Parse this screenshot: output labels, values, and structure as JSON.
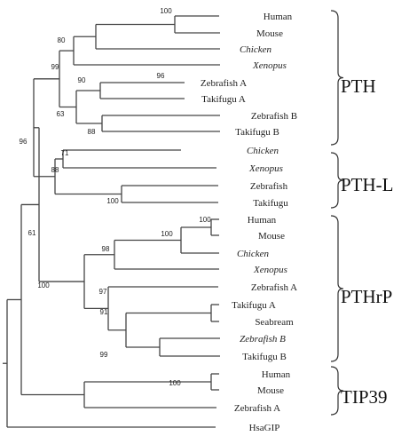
{
  "leaves": [
    {
      "label": "Human",
      "italic": false
    },
    {
      "label": "Mouse",
      "italic": false
    },
    {
      "label": "Chicken",
      "italic": true
    },
    {
      "label": "Xenopus",
      "italic": true
    },
    {
      "label": "Zebrafish A",
      "italic": false
    },
    {
      "label": "Takifugu A",
      "italic": false
    },
    {
      "label": "Zebrafish B",
      "italic": false
    },
    {
      "label": "Takifugu B",
      "italic": false
    },
    {
      "label": "Chicken",
      "italic": true
    },
    {
      "label": "Xenopus",
      "italic": true
    },
    {
      "label": "Zebrafish",
      "italic": false
    },
    {
      "label": "Takifugu",
      "italic": false
    },
    {
      "label": "Human",
      "italic": false
    },
    {
      "label": "Mouse",
      "italic": false
    },
    {
      "label": "Chicken",
      "italic": true
    },
    {
      "label": "Xenopus",
      "italic": true
    },
    {
      "label": "Zebrafish A",
      "italic": false
    },
    {
      "label": "Takifugu A",
      "italic": false
    },
    {
      "label": "Seabream",
      "italic": false
    },
    {
      "label": "Zebrafish B",
      "italic": true
    },
    {
      "label": "Takifugu B",
      "italic": false
    },
    {
      "label": "Human",
      "italic": false
    },
    {
      "label": "Mouse",
      "italic": false
    },
    {
      "label": "Zebrafish A",
      "italic": false
    },
    {
      "label": "HsaGIP",
      "italic": false
    }
  ],
  "bootstrap": [
    "100",
    "96",
    "80",
    "99",
    "90",
    "63",
    "88",
    "96",
    "71",
    "88",
    "100",
    "61",
    "100",
    "100",
    "98",
    "100",
    "97",
    "91",
    "99",
    "100"
  ],
  "groups": [
    {
      "label": "PTH"
    },
    {
      "label": "PTH-L"
    },
    {
      "label": "PTHrP"
    },
    {
      "label": "TIP39"
    }
  ]
}
